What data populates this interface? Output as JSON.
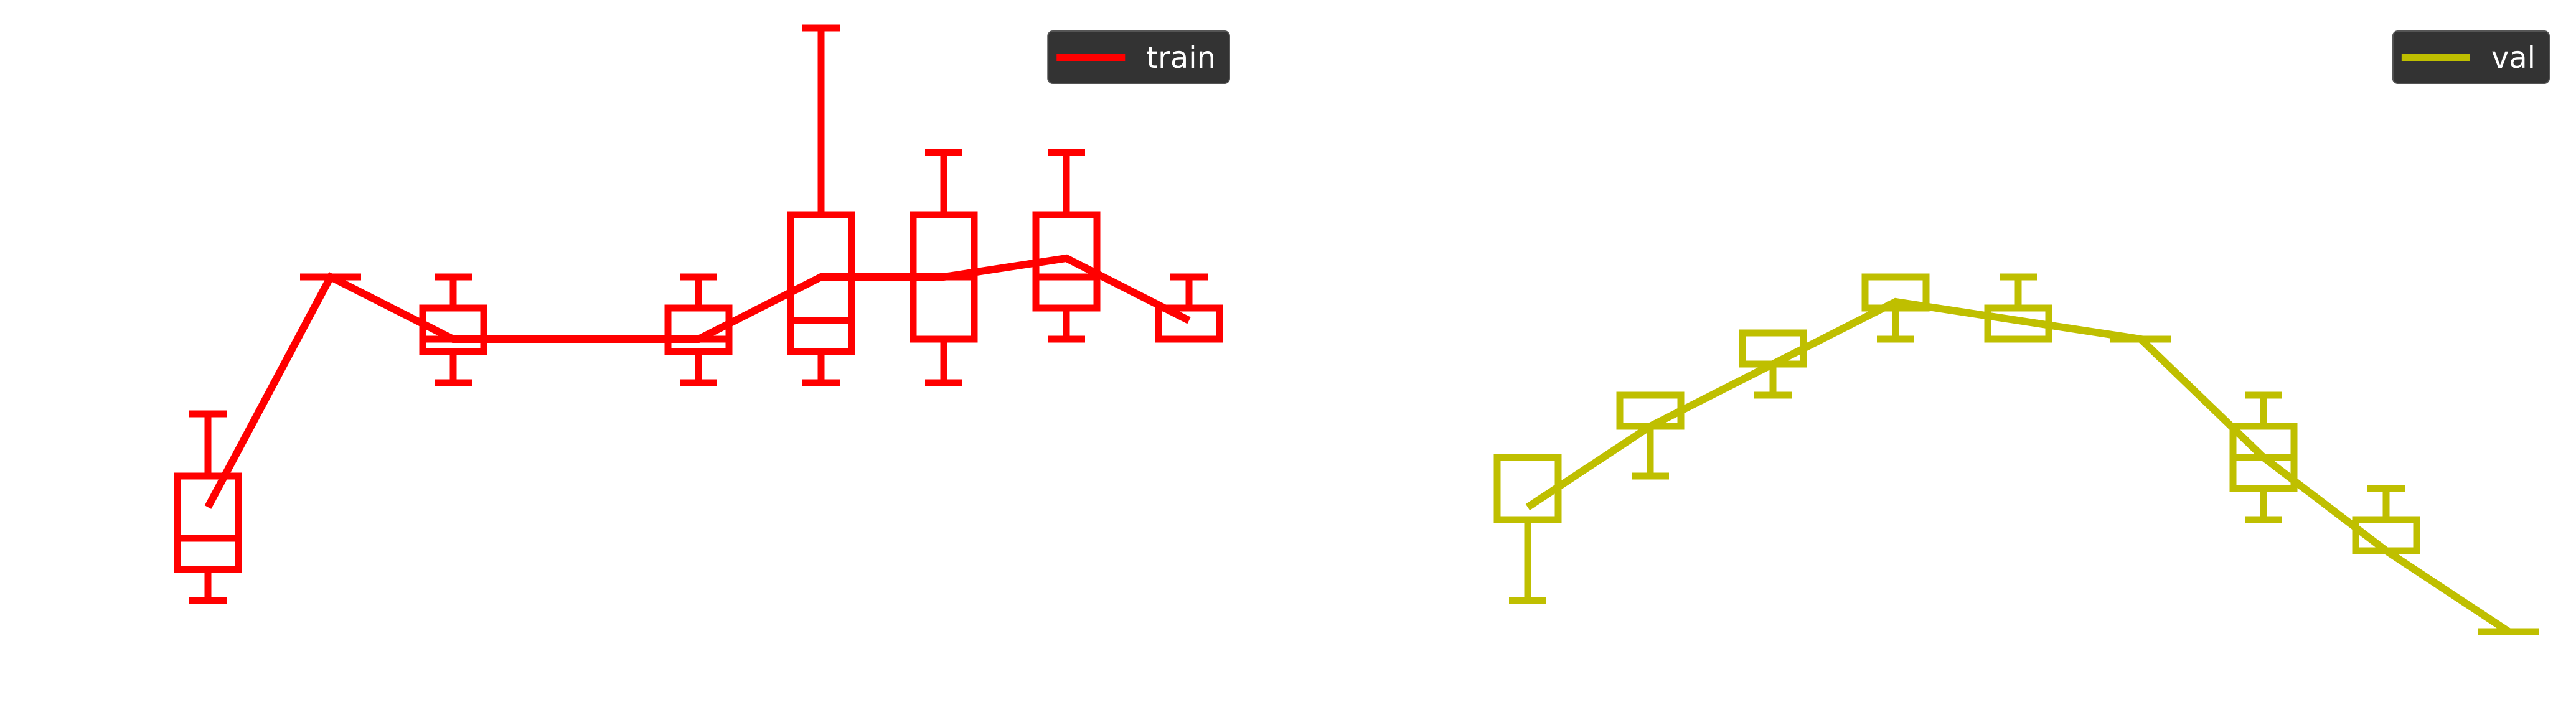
{
  "chart_data": [
    {
      "type": "box",
      "subplot": "left",
      "title": "",
      "xlabel": "",
      "ylabel": "",
      "axes_visible": false,
      "grid": false,
      "ylim": [
        0,
        10
      ],
      "legend": {
        "placement": "top-right",
        "background": "#333333"
      },
      "series": [
        {
          "name": "train",
          "color": "#ff0000",
          "x": [
            1,
            2,
            3,
            4,
            5,
            6,
            7,
            8,
            9
          ],
          "line": [
            2.5,
            6.2,
            5.2,
            5.2,
            5.2,
            6.2,
            6.2,
            6.5,
            5.5
          ],
          "boxes": [
            {
              "x": 1,
              "whislo": 1.0,
              "q1": 1.5,
              "med": 2.0,
              "q3": 3.0,
              "whishi": 4.0
            },
            {
              "x": 2,
              "whislo": 6.2,
              "q1": 6.2,
              "med": 6.2,
              "q3": 6.2,
              "whishi": 6.2
            },
            {
              "x": 3,
              "whislo": 4.5,
              "q1": 5.0,
              "med": 5.2,
              "q3": 5.7,
              "whishi": 6.2
            },
            {
              "x": 5,
              "whislo": 4.5,
              "q1": 5.0,
              "med": 5.2,
              "q3": 5.7,
              "whishi": 6.2
            },
            {
              "x": 6,
              "whislo": 4.5,
              "q1": 5.0,
              "med": 5.5,
              "q3": 7.2,
              "whishi": 10.2
            },
            {
              "x": 7,
              "whislo": 4.5,
              "q1": 5.2,
              "med": 6.2,
              "q3": 7.2,
              "whishi": 8.2
            },
            {
              "x": 8,
              "whislo": 5.2,
              "q1": 5.7,
              "med": 6.2,
              "q3": 7.2,
              "whishi": 8.2
            },
            {
              "x": 9,
              "whislo": 5.2,
              "q1": 5.2,
              "med": 5.2,
              "q3": 5.7,
              "whishi": 6.2
            }
          ]
        }
      ]
    },
    {
      "type": "box",
      "subplot": "right",
      "title": "",
      "xlabel": "",
      "ylabel": "",
      "axes_visible": false,
      "grid": false,
      "ylim": [
        0,
        10
      ],
      "legend": {
        "placement": "top-right",
        "background": "#333333"
      },
      "series": [
        {
          "name": "val",
          "color": "#bfbf00",
          "x": [
            1,
            2,
            3,
            4,
            5,
            6,
            7,
            8,
            9
          ],
          "line": [
            2.5,
            3.8,
            4.8,
            5.8,
            5.5,
            5.2,
            3.3,
            1.8,
            0.5
          ],
          "boxes": [
            {
              "x": 1,
              "whislo": 1.0,
              "q1": 2.3,
              "med": 2.3,
              "q3": 3.3,
              "whishi": 3.3
            },
            {
              "x": 2,
              "whislo": 3.0,
              "q1": 3.8,
              "med": 3.8,
              "q3": 4.3,
              "whishi": 4.3
            },
            {
              "x": 3,
              "whislo": 4.3,
              "q1": 4.8,
              "med": 4.8,
              "q3": 5.3,
              "whishi": 5.3
            },
            {
              "x": 4,
              "whislo": 5.2,
              "q1": 5.7,
              "med": 5.7,
              "q3": 6.2,
              "whishi": 6.2
            },
            {
              "x": 5,
              "whislo": 5.2,
              "q1": 5.2,
              "med": 5.7,
              "q3": 5.7,
              "whishi": 6.2
            },
            {
              "x": 6,
              "whislo": 5.2,
              "q1": 5.2,
              "med": 5.2,
              "q3": 5.2,
              "whishi": 5.2
            },
            {
              "x": 7,
              "whislo": 2.3,
              "q1": 2.8,
              "med": 3.3,
              "q3": 3.8,
              "whishi": 4.3
            },
            {
              "x": 8,
              "whislo": 1.8,
              "q1": 1.8,
              "med": 1.8,
              "q3": 2.3,
              "whishi": 2.8
            },
            {
              "x": 9,
              "whislo": 0.5,
              "q1": 0.5,
              "med": 0.5,
              "q3": 0.5,
              "whishi": 0.5
            }
          ]
        }
      ]
    }
  ]
}
